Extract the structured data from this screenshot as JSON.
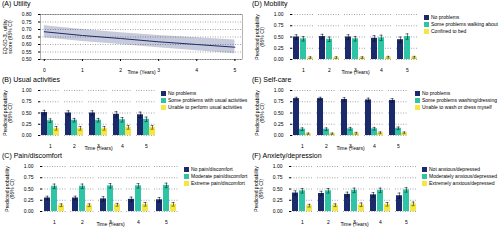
{
  "chart_data": [
    {
      "type": "line",
      "title": "(A) Utility",
      "xlabel": "Time (Years)",
      "ylabel": "EQ-5D-3L utility\nscore (95% CI)",
      "x": [
        0,
        1,
        2,
        3,
        4,
        5
      ],
      "series": [
        {
          "color": "#1b2a6b",
          "values": [
            0.685,
            0.66,
            0.64,
            0.618,
            0.6,
            0.582
          ],
          "ci_lower": [
            0.645,
            0.62,
            0.6,
            0.578,
            0.558,
            0.538
          ],
          "ci_upper": [
            0.725,
            0.7,
            0.678,
            0.66,
            0.645,
            0.63
          ]
        }
      ],
      "xlim": [
        -0.1,
        5.2
      ],
      "xticks": [
        0,
        1,
        2,
        3,
        4,
        5
      ],
      "ylim": [
        0.5,
        0.8
      ],
      "yticks": [
        {
          "value": 0.5,
          "label": "0.50"
        },
        0.55,
        {
          "value": 0.6,
          "label": "0.60"
        },
        0.65,
        {
          "value": 0.7,
          "label": "0.70"
        },
        0.75,
        {
          "value": 0.8,
          "label": "0.80"
        }
      ],
      "grid": true
    },
    {
      "type": "bar",
      "title": "(D) Mobility",
      "xlabel": "Time (Years)",
      "ylabel": "Predicted probability\n(95% CI)",
      "categories": [
        "1",
        "2",
        "3",
        "4",
        "5"
      ],
      "series": [
        {
          "name": "No problems",
          "color": "#1b2a6b",
          "values": [
            0.5,
            0.51,
            0.5,
            0.47,
            0.44
          ],
          "errors": [
            0.05,
            0.05,
            0.05,
            0.06,
            0.06
          ]
        },
        {
          "name": "Some problems walking about",
          "color": "#2ec4a5",
          "values": [
            0.46,
            0.45,
            0.46,
            0.48,
            0.51
          ],
          "errors": [
            0.05,
            0.05,
            0.05,
            0.06,
            0.06
          ]
        },
        {
          "name": "Confined to bed",
          "color": "#f5e642",
          "values": [
            0.04,
            0.04,
            0.04,
            0.05,
            0.05
          ],
          "errors": [
            0.02,
            0.02,
            0.02,
            0.02,
            0.02
          ]
        }
      ],
      "ylim": [
        0.0,
        1.0
      ],
      "yticks": [
        {
          "value": 0.0,
          "label": "0.00"
        },
        0.25,
        {
          "value": 0.5,
          "label": "0.50"
        },
        0.75,
        {
          "value": 1.0,
          "label": "1.00"
        }
      ],
      "grid": true,
      "legend": "upper right"
    },
    {
      "type": "bar",
      "title": "(B) Usual activities",
      "xlabel": "Time (Years)",
      "ylabel": "Predicted probability\n(95% CI)",
      "categories": [
        "1",
        "2",
        "3",
        "4",
        "5"
      ],
      "series": [
        {
          "name": "No problems",
          "color": "#1b2a6b",
          "values": [
            0.51,
            0.5,
            0.5,
            0.47,
            0.46
          ],
          "errors": [
            0.05,
            0.05,
            0.05,
            0.06,
            0.06
          ]
        },
        {
          "name": "Some problems with usual activities",
          "color": "#2ec4a5",
          "values": [
            0.33,
            0.34,
            0.34,
            0.35,
            0.36
          ],
          "errors": [
            0.04,
            0.04,
            0.04,
            0.05,
            0.05
          ]
        },
        {
          "name": "Unable to perform usual activities",
          "color": "#f5e642",
          "values": [
            0.16,
            0.16,
            0.16,
            0.18,
            0.18
          ],
          "errors": [
            0.04,
            0.04,
            0.04,
            0.04,
            0.04
          ]
        }
      ],
      "ylim": [
        0.0,
        1.0
      ],
      "yticks": [
        {
          "value": 0.0,
          "label": "0.00"
        },
        0.25,
        {
          "value": 0.5,
          "label": "0.50"
        },
        0.75,
        {
          "value": 1.0,
          "label": "1.00"
        }
      ],
      "grid": true,
      "legend": "upper right"
    },
    {
      "type": "bar",
      "title": "(E) Self-care",
      "xlabel": "Time (Years)",
      "ylabel": "Predicted probability\n(95% CI)",
      "categories": [
        "1",
        "2",
        "3",
        "4",
        "5"
      ],
      "series": [
        {
          "name": "No problems",
          "color": "#1b2a6b",
          "values": [
            0.82,
            0.82,
            0.8,
            0.79,
            0.78
          ],
          "errors": [
            0.03,
            0.03,
            0.04,
            0.04,
            0.04
          ]
        },
        {
          "name": "Some problems washing/dressing",
          "color": "#2ec4a5",
          "values": [
            0.14,
            0.14,
            0.15,
            0.15,
            0.16
          ],
          "errors": [
            0.03,
            0.03,
            0.03,
            0.03,
            0.03
          ]
        },
        {
          "name": "Unable to wash or dress myself",
          "color": "#f5e642",
          "values": [
            0.04,
            0.04,
            0.05,
            0.06,
            0.06
          ],
          "errors": [
            0.015,
            0.015,
            0.02,
            0.02,
            0.02
          ]
        }
      ],
      "ylim": [
        0.0,
        1.0
      ],
      "yticks": [
        {
          "value": 0.0,
          "label": "0.00"
        },
        0.25,
        {
          "value": 0.5,
          "label": "0.50"
        },
        0.75,
        {
          "value": 1.0,
          "label": "1.00"
        }
      ],
      "grid": true,
      "legend": "upper right"
    },
    {
      "type": "bar",
      "title": "(C) Pain/discomfort",
      "xlabel": "Time (Years)",
      "ylabel": "Predicted probability\n(95% CI)",
      "categories": [
        "1",
        "2",
        "3",
        "4",
        "5"
      ],
      "series": [
        {
          "name": "No pain/discomfort",
          "color": "#1b2a6b",
          "values": [
            0.3,
            0.3,
            0.28,
            0.27,
            0.26
          ],
          "errors": [
            0.04,
            0.04,
            0.05,
            0.05,
            0.05
          ]
        },
        {
          "name": "Moderate pain/discomfort",
          "color": "#2ec4a5",
          "values": [
            0.56,
            0.56,
            0.57,
            0.57,
            0.58
          ],
          "errors": [
            0.05,
            0.05,
            0.05,
            0.05,
            0.05
          ]
        },
        {
          "name": "Extreme pain/discomfort",
          "color": "#f5e642",
          "values": [
            0.14,
            0.14,
            0.15,
            0.16,
            0.16
          ],
          "errors": [
            0.03,
            0.03,
            0.03,
            0.04,
            0.04
          ]
        }
      ],
      "ylim": [
        0.0,
        1.0
      ],
      "yticks": [
        {
          "value": 0.0,
          "label": "0.00"
        },
        0.25,
        {
          "value": 0.5,
          "label": "0.50"
        },
        0.75,
        {
          "value": 1.0,
          "label": "1.00"
        }
      ],
      "grid": true,
      "legend": "upper right"
    },
    {
      "type": "bar",
      "title": "(F) Anxiety/depression",
      "xlabel": "Time (Years)",
      "ylabel": "Predicted probability\n(95% CI)",
      "categories": [
        "1",
        "2",
        "3",
        "4",
        "5"
      ],
      "series": [
        {
          "name": "Not anxious/depressed",
          "color": "#1b2a6b",
          "values": [
            0.41,
            0.4,
            0.38,
            0.37,
            0.35
          ],
          "errors": [
            0.05,
            0.05,
            0.05,
            0.05,
            0.06
          ]
        },
        {
          "name": "Moderately anxious/depressed",
          "color": "#2ec4a5",
          "values": [
            0.46,
            0.46,
            0.47,
            0.47,
            0.48
          ],
          "errors": [
            0.05,
            0.05,
            0.05,
            0.05,
            0.05
          ]
        },
        {
          "name": "Extremely anxious/depressed",
          "color": "#f5e642",
          "values": [
            0.13,
            0.14,
            0.15,
            0.16,
            0.17
          ],
          "errors": [
            0.03,
            0.03,
            0.04,
            0.04,
            0.04
          ]
        }
      ],
      "ylim": [
        0.0,
        1.0
      ],
      "yticks": [
        {
          "value": 0.0,
          "label": "0.00"
        },
        0.25,
        {
          "value": 0.5,
          "label": "0.50"
        },
        0.75,
        {
          "value": 1.0,
          "label": "1.00"
        }
      ],
      "grid": true,
      "legend": "upper right"
    }
  ]
}
